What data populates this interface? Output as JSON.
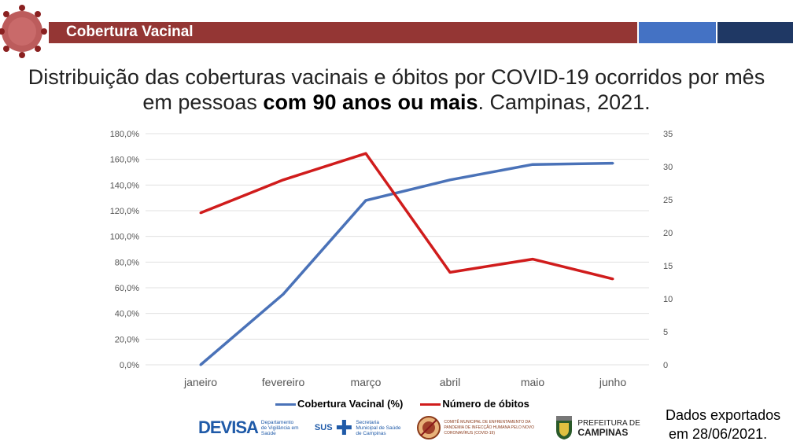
{
  "header": {
    "title": "Cobertura Vacinal"
  },
  "slide_title": {
    "part1": "Distribuição das coberturas vacinais e óbitos por COVID-19 ocorridos por mês",
    "part2": "em pessoas ",
    "bold": "com 90 anos ou mais",
    "part3": ". Campinas, 2021."
  },
  "chart_data": {
    "type": "line",
    "title": "",
    "categories": [
      "janeiro",
      "fevereiro",
      "março",
      "abril",
      "maio",
      "junho"
    ],
    "series": [
      {
        "name": "Cobertura Vacinal (%)",
        "axis": "left",
        "color": "#4a72b8",
        "values": [
          0,
          55,
          128,
          144,
          156,
          157
        ]
      },
      {
        "name": "Número de óbitos",
        "axis": "right",
        "color": "#d01c1c",
        "values": [
          23,
          28,
          32,
          14,
          16,
          13
        ]
      }
    ],
    "ylim_left": [
      0,
      180
    ],
    "yticks_left": [
      "0,0%",
      "20,0%",
      "40,0%",
      "60,0%",
      "80,0%",
      "100,0%",
      "120,0%",
      "140,0%",
      "160,0%",
      "180,0%"
    ],
    "ylim_right": [
      0,
      35
    ],
    "yticks_right": [
      "0",
      "5",
      "10",
      "15",
      "20",
      "25",
      "30",
      "35"
    ],
    "grid": true,
    "legend": "bottom"
  },
  "note": {
    "line1": "Dados exportados",
    "line2": "em 28/06/2021."
  },
  "logos": {
    "devisa": "DEVISA",
    "devisa_sub": "Departamento de Vigilância em Saúde",
    "sus": "SUS",
    "sus_sub": "Secretaria Municipal de Saúde de Campinas",
    "comite": "COMITÊ MUNICIPAL DE ENFRENTAMENTO DA PANDEMIA DE INFECÇÃO HUMANA PELO NOVO CORONAVÍRUS (COVID-19)",
    "pref1": "PREFEITURA DE",
    "pref2": "CAMPINAS"
  }
}
